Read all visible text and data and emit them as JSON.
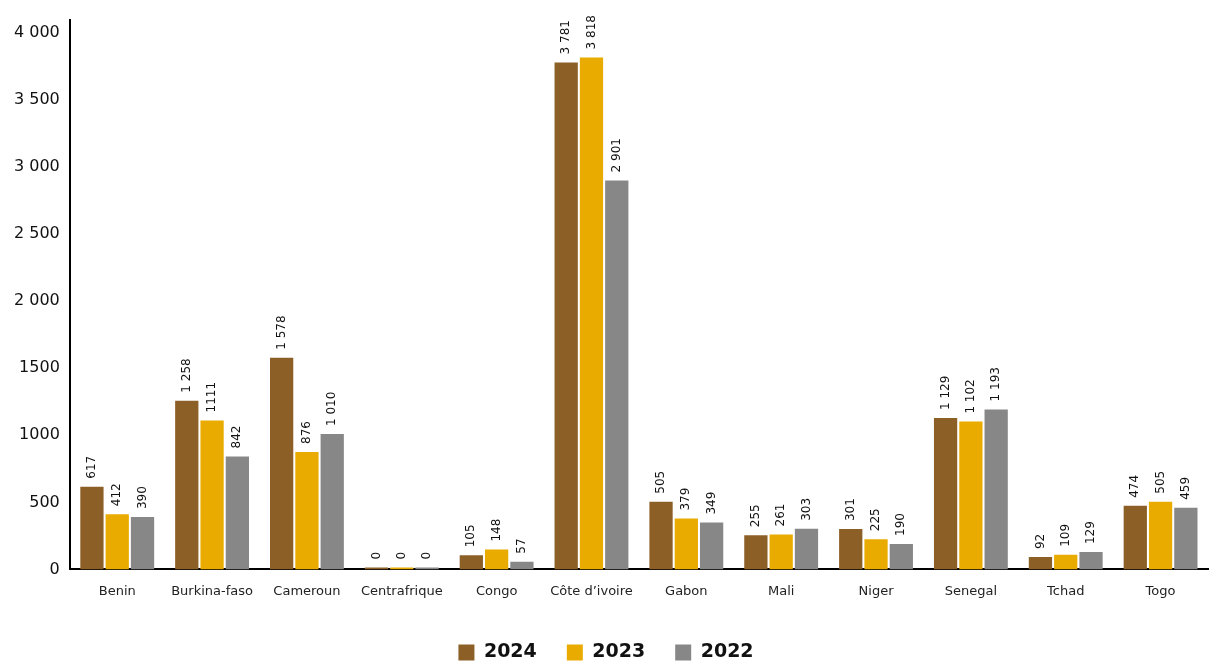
{
  "chart_data": {
    "type": "bar",
    "categories": [
      "Benin",
      "Burkina-faso",
      "Cameroun",
      "Centrafrique",
      "Congo",
      "Côte d’ivoire",
      "Gabon",
      "Mali",
      "Niger",
      "Senegal",
      "Tchad",
      "Togo"
    ],
    "series": [
      {
        "name": "2024",
        "color": "#8c5f27",
        "values": [
          617,
          1258,
          1578,
          0,
          105,
          3781,
          505,
          255,
          301,
          1129,
          92,
          474
        ],
        "value_labels": [
          "617",
          "1 258",
          "1 578",
          "0",
          "105",
          "3 781",
          "505",
          "255",
          "301",
          "1 129",
          "92",
          "474"
        ]
      },
      {
        "name": "2023",
        "color": "#eaab00",
        "values": [
          412,
          1111,
          876,
          0,
          148,
          3818,
          379,
          261,
          225,
          1102,
          109,
          505
        ],
        "value_labels": [
          "412",
          "1111",
          "876",
          "0",
          "148",
          "3 818",
          "379",
          "261",
          "225",
          "1 102",
          "109",
          "505"
        ]
      },
      {
        "name": "2022",
        "color": "#878787",
        "values": [
          390,
          842,
          1010,
          0,
          57,
          2901,
          349,
          303,
          190,
          1193,
          129,
          459
        ],
        "value_labels": [
          "390",
          "842",
          "1 010",
          "0",
          "57",
          "2 901",
          "349",
          "303",
          "190",
          "1 193",
          "129",
          "459"
        ]
      }
    ],
    "ylim": [
      0,
      4100
    ],
    "yticks": [
      {
        "value": 0,
        "label": "0"
      },
      {
        "value": 500,
        "label": "500"
      },
      {
        "value": 1000,
        "label": "1000"
      },
      {
        "value": 1500,
        "label": "1500"
      },
      {
        "value": 2000,
        "label": "2 000"
      },
      {
        "value": 2500,
        "label": "2 500"
      },
      {
        "value": 3000,
        "label": "3 000"
      },
      {
        "value": 3500,
        "label": "3 500"
      },
      {
        "value": 4000,
        "label": "4 000"
      }
    ],
    "grid": false,
    "legend": "bottom"
  }
}
